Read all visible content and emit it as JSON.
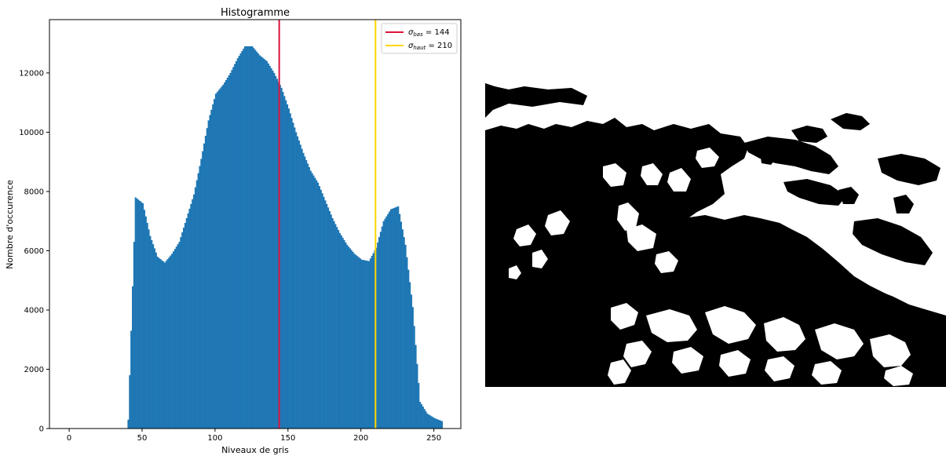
{
  "chart_data": {
    "type": "bar",
    "title": "Histogramme",
    "xlabel": "Niveaux de gris",
    "ylabel": "Nombre d'occurence",
    "xlim": [
      -13.5,
      268.5
    ],
    "ylim": [
      0,
      13800
    ],
    "x_ticks": [
      0,
      50,
      100,
      150,
      200,
      250
    ],
    "y_ticks": [
      0,
      2000,
      4000,
      6000,
      8000,
      10000,
      12000
    ],
    "bar_color": "#1f77b4",
    "x": [
      40,
      45,
      50,
      55,
      60,
      65,
      70,
      75,
      80,
      85,
      90,
      95,
      100,
      105,
      110,
      115,
      120,
      125,
      130,
      135,
      140,
      145,
      150,
      155,
      160,
      165,
      170,
      175,
      180,
      185,
      190,
      195,
      200,
      205,
      210,
      215,
      220,
      225,
      230,
      235,
      240,
      245,
      250,
      255
    ],
    "values": [
      300,
      7800,
      7600,
      6500,
      5800,
      5600,
      5900,
      6300,
      7100,
      7900,
      9100,
      10400,
      11300,
      11600,
      12000,
      12500,
      12900,
      12900,
      12600,
      12400,
      12000,
      11500,
      10800,
      10000,
      9300,
      8700,
      8300,
      7700,
      7100,
      6600,
      6200,
      5900,
      5700,
      5650,
      6100,
      7000,
      7400,
      7500,
      6200,
      4100,
      900,
      500,
      350,
      250
    ],
    "series": [
      {
        "name": "σ_bas = 144",
        "value": 144,
        "color": "#dc143c"
      },
      {
        "name": "σ_haut = 210",
        "value": 210,
        "color": "#ffd700"
      }
    ],
    "legend_position": "top-right",
    "grid": false
  },
  "legend": {
    "low_sigma": "σ",
    "low_sub": "bas",
    "low_rest": " = 144",
    "high_sigma": "σ",
    "high_sub": "haut",
    "high_rest": " = 210"
  },
  "binary_image": {
    "colors": {
      "foreground": "#ffffff",
      "background": "#000000"
    }
  }
}
